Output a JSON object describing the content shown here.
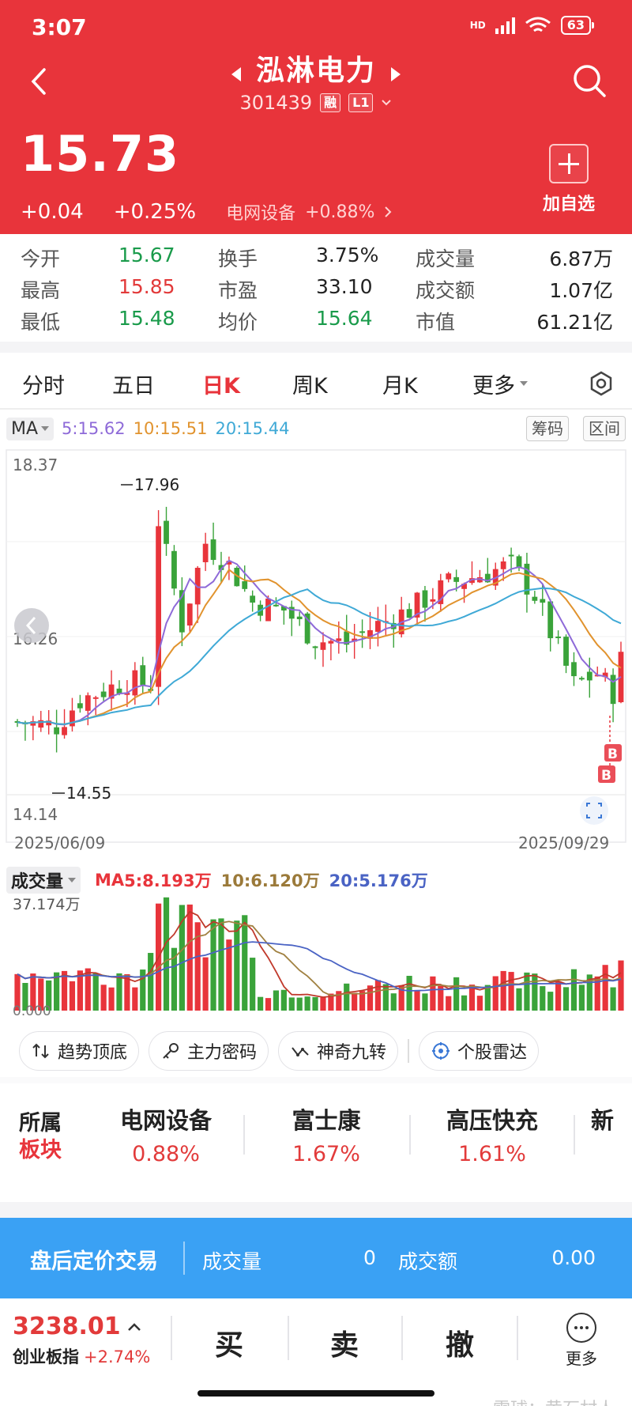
{
  "status": {
    "time": "3:07",
    "network": "HD",
    "battery": "63"
  },
  "header": {
    "stock_name": "泓淋电力",
    "code": "301439",
    "tag_margin": "融",
    "tag_level": "L1",
    "price": "15.73",
    "change": "+0.04",
    "change_pct": "+0.25%",
    "sector_name": "电网设备",
    "sector_pct": "+0.88%",
    "add_watch": "加自选",
    "accent": "#e8343b"
  },
  "quote": {
    "rows": [
      [
        {
          "label": "今开",
          "value": "15.67"
        },
        {
          "label": "换手",
          "value": "3.75%"
        },
        {
          "label": "成交量",
          "value": "6.87万"
        }
      ],
      [
        {
          "label": "最高",
          "value": "15.85"
        },
        {
          "label": "市盈",
          "value": "33.10"
        },
        {
          "label": "成交额",
          "value": "1.07亿"
        }
      ],
      [
        {
          "label": "最低",
          "value": "15.48"
        },
        {
          "label": "均价",
          "value": "15.64"
        },
        {
          "label": "市值",
          "value": "61.21亿"
        }
      ]
    ]
  },
  "tabs": [
    "分时",
    "五日",
    "日K",
    "周K",
    "月K",
    "更多"
  ],
  "ma": {
    "select": "MA",
    "ma5": "5:15.62",
    "ma10": "10:15.51",
    "ma20": "20:15.44",
    "btn_chip": "筹码",
    "btn_range": "区间"
  },
  "kline": {
    "y_top": "18.37",
    "y_mid": "16.26",
    "y_bot": "14.14",
    "high_mark": "17.96",
    "low_mark": "14.55",
    "date_start": "2025/06/09",
    "date_end": "2025/09/29",
    "b_marker": "B"
  },
  "volume": {
    "select": "成交量",
    "ma_label": "MA",
    "ma5": "5:8.193万",
    "ma10": "10:6.120万",
    "ma20": "20:5.176万",
    "y_top": "37.174万",
    "y_bot": "0.000"
  },
  "tools": [
    "趋势顶底",
    "主力密码",
    "神奇九转",
    "个股雷达"
  ],
  "sector": {
    "title1": "所属",
    "title2": "板块",
    "items": [
      {
        "name": "电网设备",
        "pct": "0.88%"
      },
      {
        "name": "富士康",
        "pct": "1.67%"
      },
      {
        "name": "高压快充",
        "pct": "1.61%"
      },
      {
        "name": "新",
        "pct": ""
      }
    ]
  },
  "after_hours": {
    "title": "盘后定价交易",
    "vol_label": "成交量",
    "vol_value": "0",
    "amt_label": "成交额",
    "amt_value": "0.00"
  },
  "bottom": {
    "index_value": "3238.01",
    "index_name": "创业板指",
    "index_chg": "+2.74%",
    "buy": "买",
    "sell": "卖",
    "cancel": "撤",
    "more": "更多"
  },
  "watermark": "雪球：黄石村人"
}
